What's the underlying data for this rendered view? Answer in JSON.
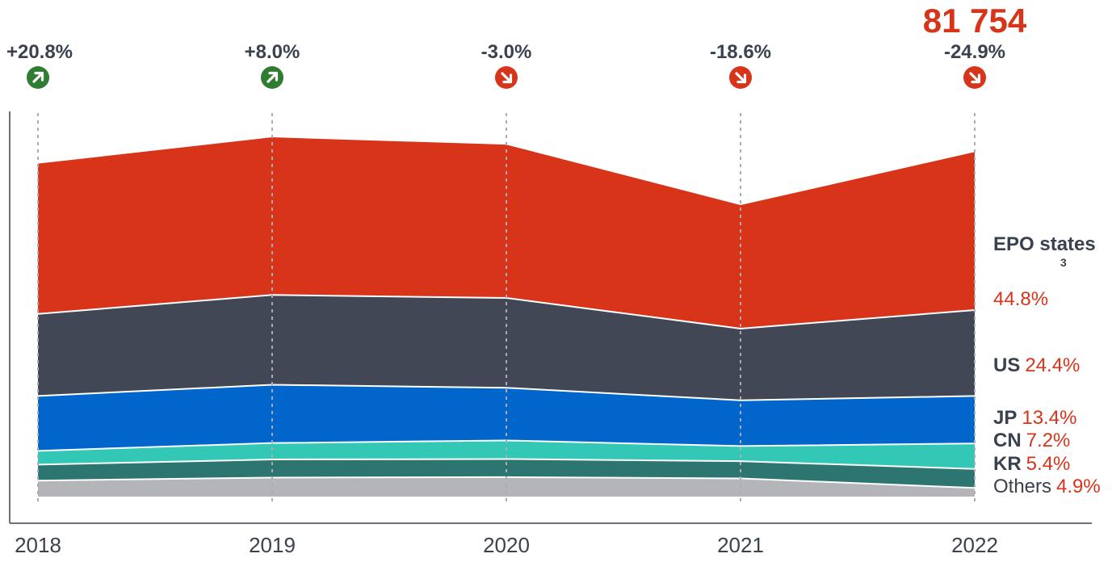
{
  "chart_data": {
    "type": "area",
    "stacked": true,
    "categories": [
      "2018",
      "2019",
      "2020",
      "2021",
      "2022"
    ],
    "series": [
      {
        "name": "Others",
        "share_2022": "4.9%",
        "color": "#b3b5b8",
        "values": [
          3700,
          4400,
          4500,
          4200,
          2000
        ]
      },
      {
        "name": "KR",
        "share_2022": "5.4%",
        "color": "#2d7571",
        "values": [
          3700,
          4200,
          4200,
          4000,
          4400
        ]
      },
      {
        "name": "CN",
        "share_2022": "7.2%",
        "color": "#33c8b6",
        "values": [
          3200,
          3800,
          4300,
          3500,
          5900
        ]
      },
      {
        "name": "JP",
        "share_2022": "13.4%",
        "color": "#0066cc",
        "values": [
          12700,
          13500,
          12200,
          10600,
          11000
        ]
      },
      {
        "name": "US",
        "share_2022": "24.4%",
        "color": "#414754",
        "values": [
          19000,
          20800,
          20800,
          16600,
          19900
        ]
      },
      {
        "name": "EPO states",
        "name_sup": "3",
        "share_2022": "44.8%",
        "color": "#d7341a",
        "values": [
          34800,
          36500,
          35500,
          28600,
          36600
        ]
      }
    ],
    "change_labels": [
      "+20.8%",
      "+8.0%",
      "-3.0%",
      "-18.6%",
      "-24.9%"
    ],
    "change_directions": [
      "up",
      "up",
      "down",
      "down",
      "down"
    ],
    "latest_total": "81 754",
    "grid": false,
    "ylim": [
      0,
      115000
    ]
  },
  "colors": {
    "increase": "#2e7d32",
    "decrease": "#d7341a",
    "axis": "#6b7180",
    "guide": "#a9acb2"
  }
}
